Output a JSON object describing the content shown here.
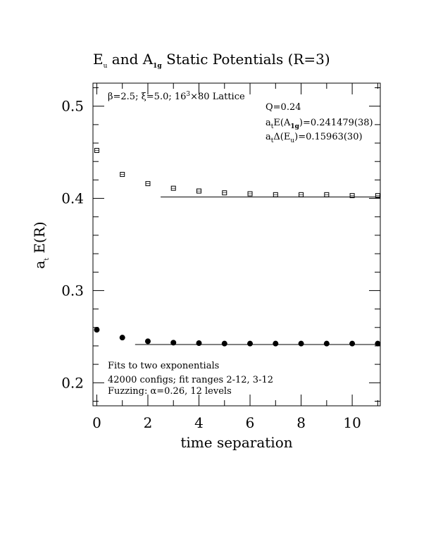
{
  "chart_data": {
    "type": "scatter",
    "title_parts": {
      "e": "E",
      "e_sub": "u",
      "and": " and A",
      "a_sub": "1g",
      "rest": " Static Potentials (R=3)"
    },
    "xlabel": "time separation",
    "ylabel_parts": {
      "a": "a",
      "a_sub": "t",
      "rest": " E(R)"
    },
    "xlim": [
      -0.15,
      11.1
    ],
    "ylim": [
      0.175,
      0.525
    ],
    "x_ticks": [
      {
        "value": 0,
        "label": "0"
      },
      {
        "value": 2,
        "label": "2"
      },
      {
        "value": 4,
        "label": "4"
      },
      {
        "value": 6,
        "label": "6"
      },
      {
        "value": 8,
        "label": "8"
      },
      {
        "value": 10,
        "label": "10"
      }
    ],
    "y_ticks": [
      {
        "value": 0.2,
        "label": "0.2"
      },
      {
        "value": 0.3,
        "label": "0.3"
      },
      {
        "value": 0.4,
        "label": "0.4"
      },
      {
        "value": 0.5,
        "label": "0.5"
      }
    ],
    "series": [
      {
        "marker": "open-square",
        "x": [
          0,
          1,
          2,
          3,
          4,
          5,
          6,
          7,
          8,
          9,
          10,
          11
        ],
        "y": [
          0.452,
          0.426,
          0.416,
          0.411,
          0.408,
          0.406,
          0.405,
          0.404,
          0.404,
          0.404,
          0.403,
          0.403
        ],
        "fit": {
          "x_start": 2.5,
          "x_end": 11.1,
          "y": 0.4015
        }
      },
      {
        "marker": "filled-circle",
        "x": [
          0,
          1,
          2,
          3,
          4,
          5,
          6,
          7,
          8,
          9,
          10,
          11
        ],
        "y": [
          0.2575,
          0.249,
          0.245,
          0.2435,
          0.243,
          0.2425,
          0.2425,
          0.2425,
          0.2425,
          0.2425,
          0.2425,
          0.2425
        ],
        "fit": {
          "x_start": 1.5,
          "x_end": 11.1,
          "y": 0.2415
        }
      }
    ],
    "annotations": {
      "lattice": {
        "beta": "β",
        "beta_val": "=2.5; ",
        "xi": "ξ",
        "xi_val": "=5.0; 16",
        "exp": "3",
        "rest": "×80 Lattice"
      },
      "q": "Q=0.24",
      "e_a1g": {
        "a": "a",
        "a_sub": "t",
        "mid": "E(A",
        "mid_sub": "1g",
        "rest": ")=0.241479(38)"
      },
      "d_eu": {
        "a": "a",
        "a_sub": "t",
        "mid": "Δ(E",
        "mid_sub": "u",
        "rest": ")=0.15963(30)"
      },
      "fits": "Fits to two exponentials",
      "configs": "42000 configs; fit ranges 2-12, 3-12",
      "fuzzing": {
        "pre": "Fuzzing: ",
        "alpha": "α",
        "rest": "=0.26, 12 levels"
      }
    }
  }
}
